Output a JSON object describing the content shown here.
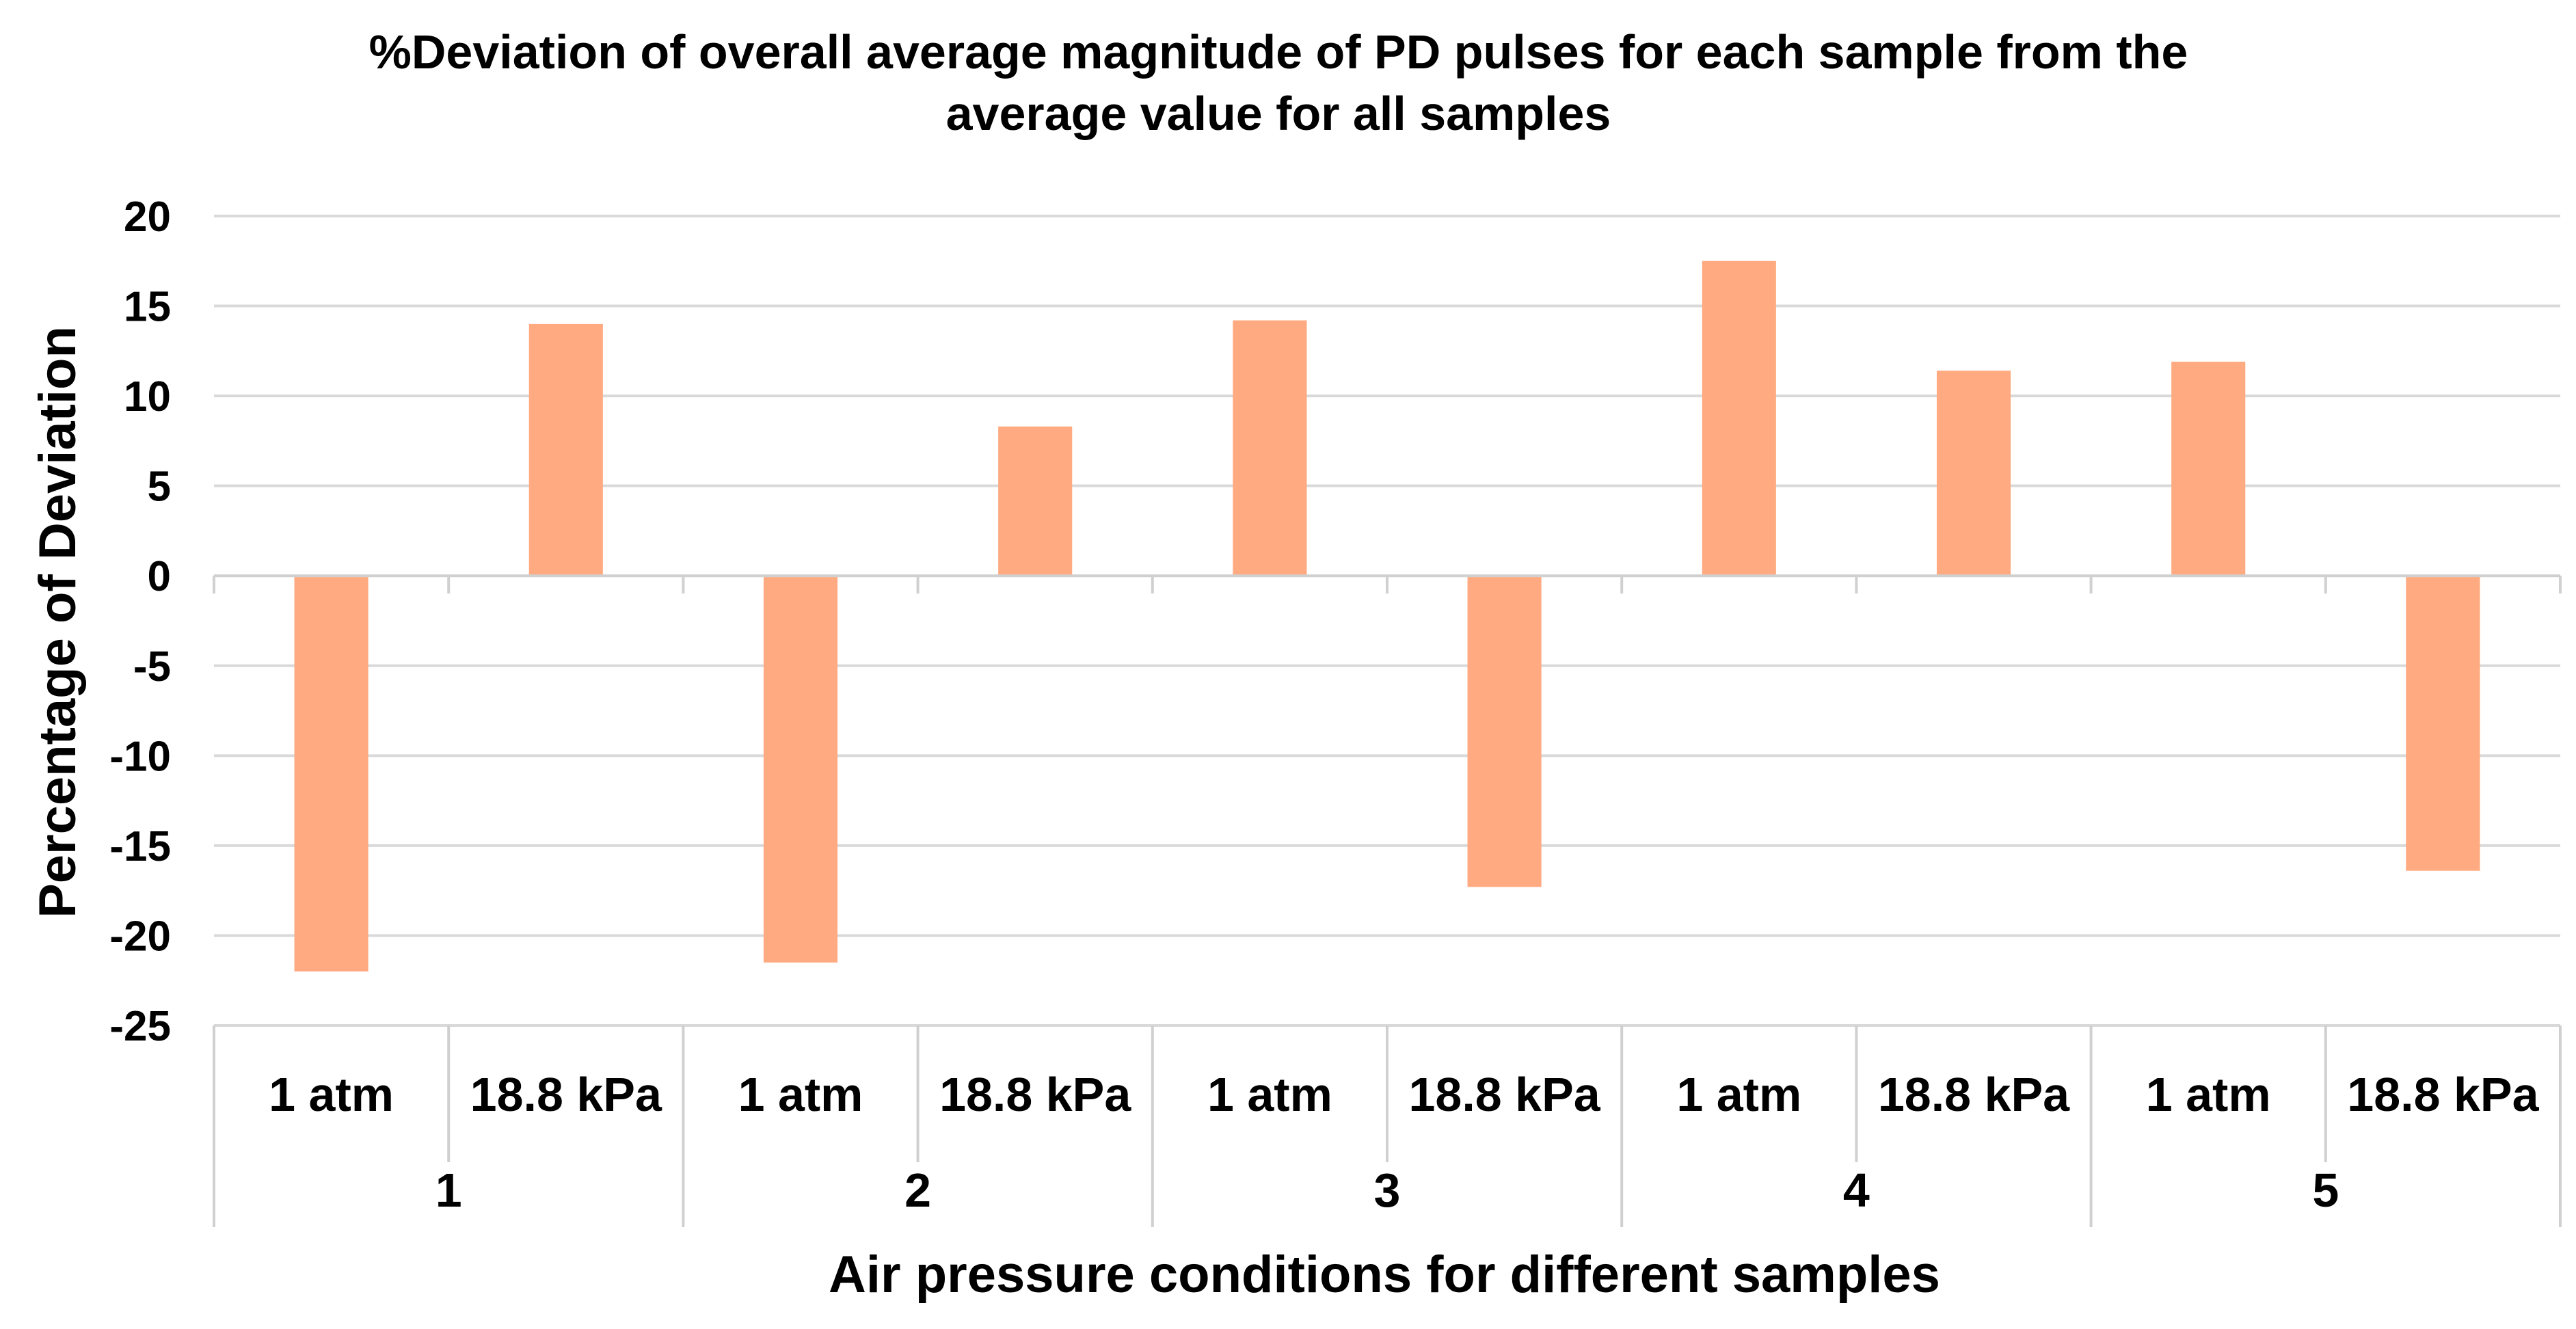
{
  "chart_data": {
    "type": "bar",
    "title_lines": [
      "%Deviation of overall average magnitude of PD pulses for each sample from the",
      "average value for all samples"
    ],
    "xlabel": "Air pressure conditions for different samples",
    "ylabel": "Percentage of Deviation",
    "ylim": [
      -25,
      20
    ],
    "yticks": [
      20,
      15,
      10,
      5,
      0,
      -5,
      -10,
      -15,
      -20,
      -25
    ],
    "ytick_labels": [
      "20",
      "15",
      "10",
      "5",
      "0",
      "-5",
      "-10",
      "-15",
      "-20",
      "-25"
    ],
    "grid": true,
    "legend": "none",
    "groups": [
      "1",
      "2",
      "3",
      "4",
      "5"
    ],
    "categories": [
      "1 atm",
      "18.8 kPa",
      "1 atm",
      "18.8 kPa",
      "1 atm",
      "18.8 kPa",
      "1 atm",
      "18.8 kPa",
      "1 atm",
      "18.8 kPa"
    ],
    "series": [
      {
        "name": "% Deviation",
        "values": [
          -22.0,
          14.0,
          -21.5,
          8.3,
          14.2,
          -17.3,
          17.5,
          11.4,
          11.9,
          -16.4
        ]
      }
    ],
    "colors": {
      "bar": "#ffaa80",
      "grid": "#d9d9d9",
      "axis": "#d0d0d0",
      "text": "#000000"
    }
  }
}
